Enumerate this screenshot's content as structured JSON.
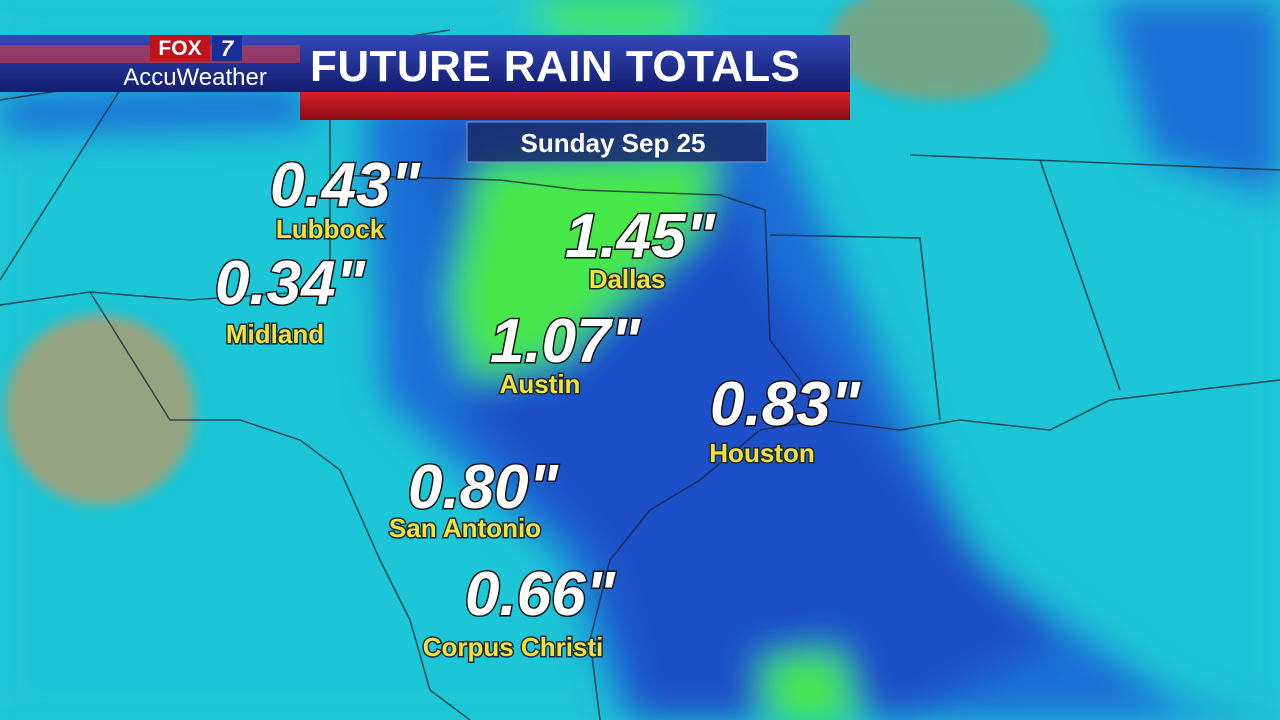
{
  "header": {
    "logo_top": "FOX",
    "logo_num": "7",
    "brand": "AccuWeather",
    "title": "FUTURE RAIN TOTALS"
  },
  "date": "Sunday Sep 25",
  "cities": [
    {
      "name": "Lubbock",
      "total": "0.43\""
    },
    {
      "name": "Midland",
      "total": "0.34\""
    },
    {
      "name": "Dallas",
      "total": "1.45\""
    },
    {
      "name": "Austin",
      "total": "1.07\""
    },
    {
      "name": "Houston",
      "total": "0.83\""
    },
    {
      "name": "San Antonio",
      "total": "0.80\""
    },
    {
      "name": "Corpus Christi",
      "total": "0.66\""
    }
  ]
}
